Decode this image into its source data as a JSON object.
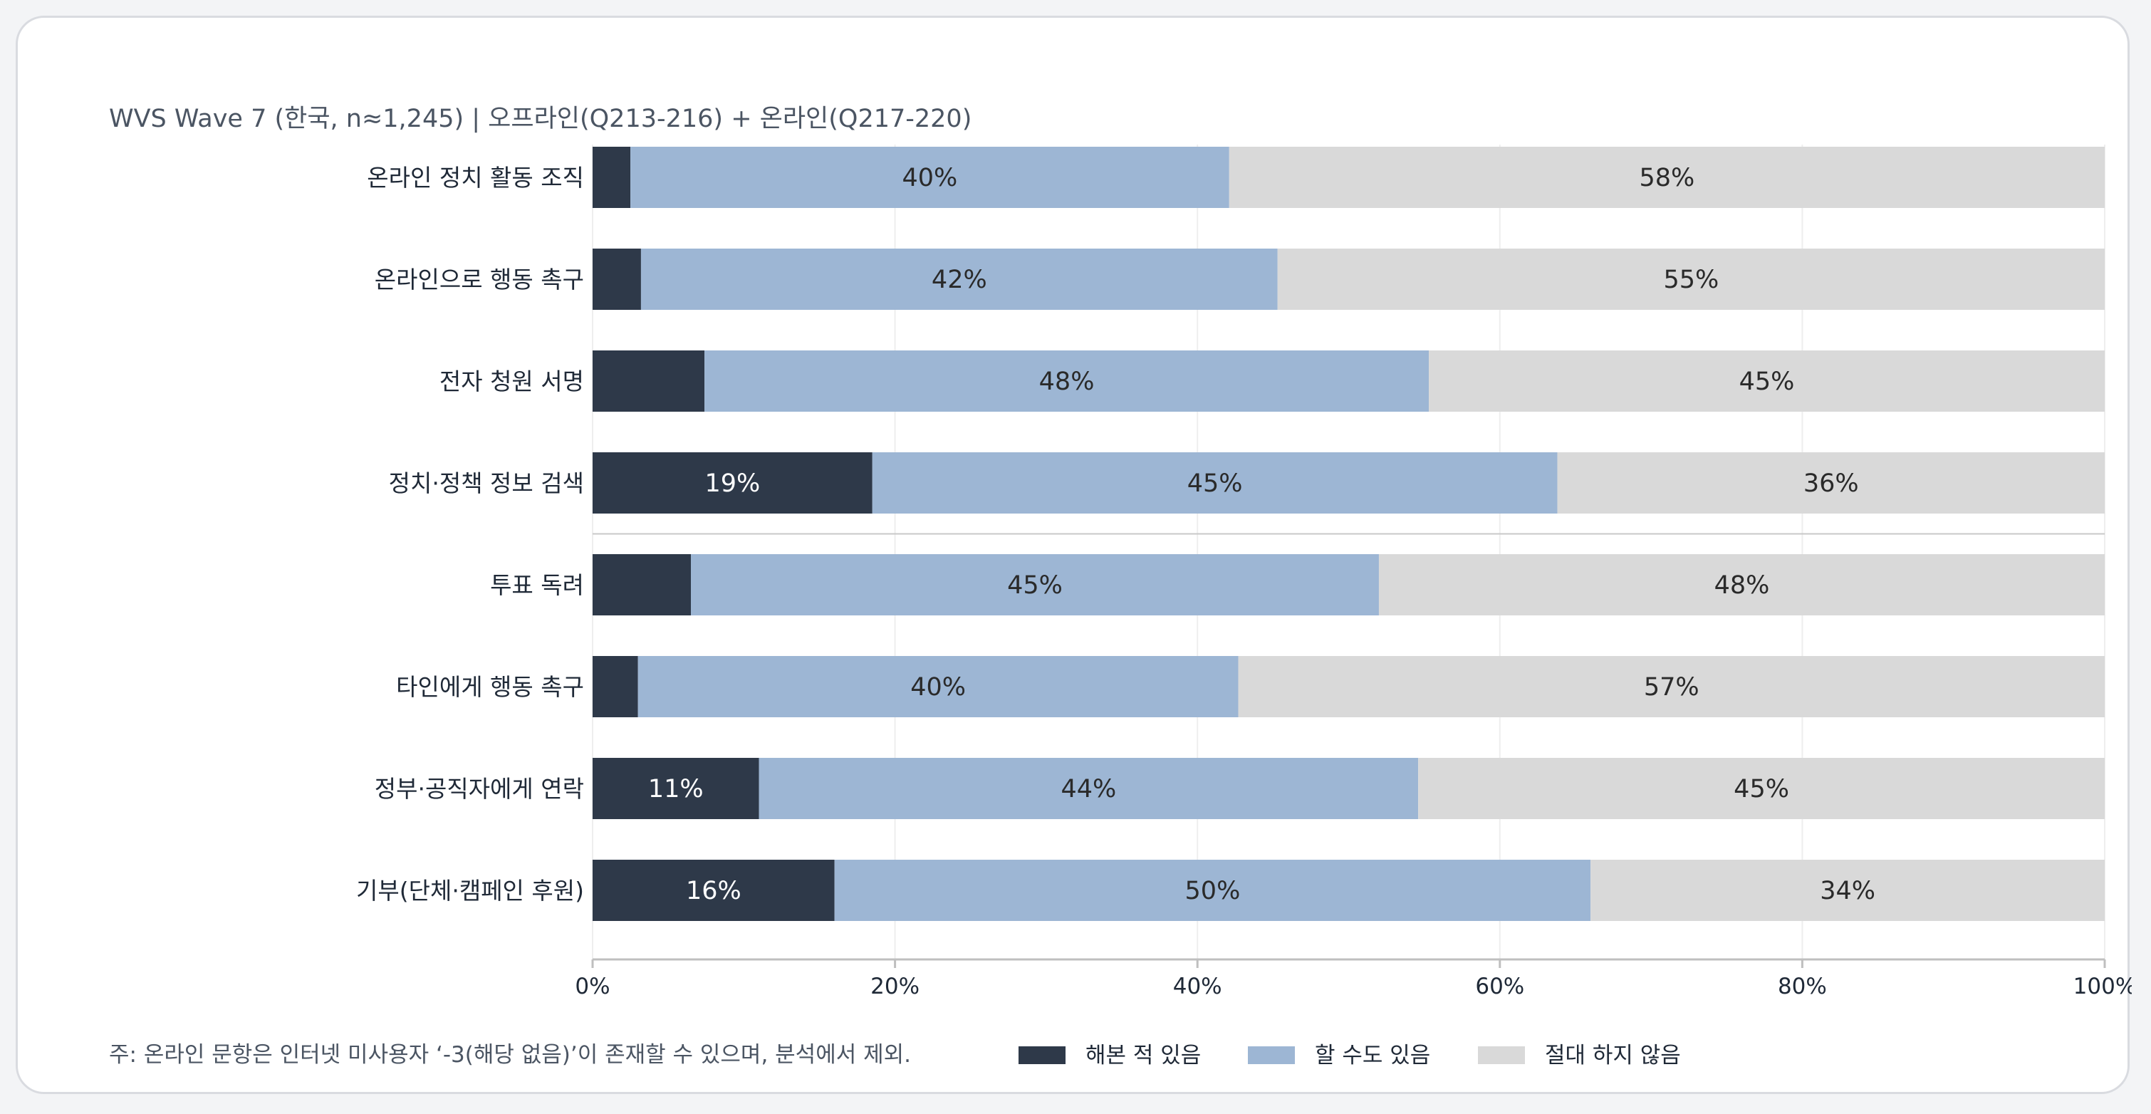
{
  "chart_data": {
    "type": "bar",
    "orientation": "horizontal",
    "stacked": true,
    "subtitle": "WVS Wave 7 (한국, n≈1,245) | 오프라인(Q213-216) + 온라인(Q217-220)",
    "categories": [
      "온라인 정치 활동 조직",
      "온라인으로 행동 촉구",
      "전자 청원 서명",
      "정치·정책 정보 검색",
      "투표 독려",
      "타인에게 행동 촉구",
      "정부·공직자에게 연락",
      "기부(단체·캠페인 후원)"
    ],
    "series": [
      {
        "name": "해본 적 있음",
        "color": "#2e3949",
        "label_color": "#ffffff",
        "values": [
          2.5,
          3.2,
          7.4,
          18.5,
          6.5,
          3.0,
          11.0,
          16.0
        ]
      },
      {
        "name": "할 수도 있음",
        "color": "#9db6d4",
        "label_color": "#2a2a2a",
        "values": [
          39.6,
          42.1,
          47.9,
          45.3,
          45.5,
          39.7,
          43.6,
          50.0
        ]
      },
      {
        "name": "절대 하지 않음",
        "color": "#d9d9d9",
        "label_color": "#2a2a2a",
        "values": [
          57.9,
          54.7,
          44.7,
          36.2,
          48.0,
          57.3,
          45.4,
          34.0
        ]
      }
    ],
    "value_labels": [
      [
        "",
        "40%",
        "58%"
      ],
      [
        "",
        "42%",
        "55%"
      ],
      [
        "",
        "48%",
        "45%"
      ],
      [
        "19%",
        "45%",
        "36%"
      ],
      [
        "",
        "45%",
        "48%"
      ],
      [
        "",
        "40%",
        "57%"
      ],
      [
        "11%",
        "44%",
        "45%"
      ],
      [
        "16%",
        "50%",
        "34%"
      ]
    ],
    "xlim": [
      0,
      100
    ],
    "xticks": [
      0,
      20,
      40,
      60,
      80,
      100
    ],
    "xtick_labels": [
      "0%",
      "20%",
      "40%",
      "60%",
      "80%",
      "100%"
    ],
    "grid": true,
    "separator_after_index": 3,
    "legend_position": "bottom-center",
    "footnote": "주: 온라인 문항은 인터넷 미사용자 ‘-3(해당 없음)’이 존재할 수 있으며, 분석에서 제외."
  }
}
